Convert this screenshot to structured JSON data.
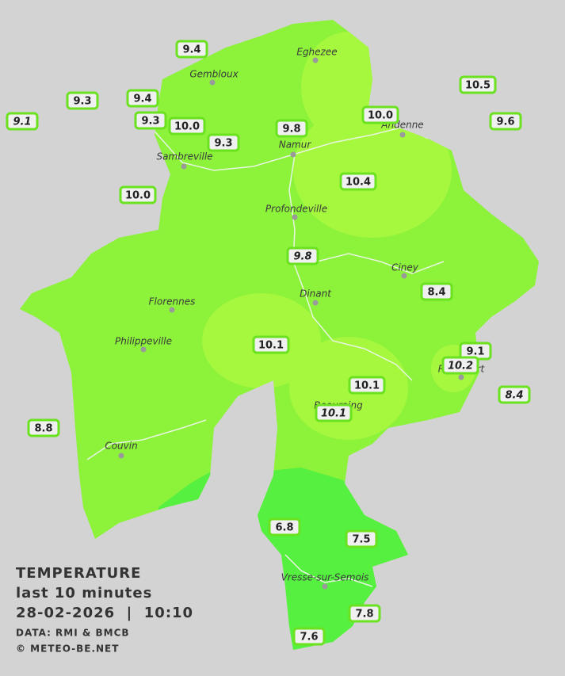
{
  "title": "TEMPERATURE",
  "subtitle": "last 10 minutes",
  "datetime": "28-02-2026  |  10:10",
  "credits": [
    "DATA: RMI & BMCB",
    "© METEO-BE.NET"
  ],
  "cities": [
    "Eghezee",
    "Gembloux",
    "Andenne",
    "Namur",
    "Sambreville",
    "Profondeville",
    "Ciney",
    "Dinant",
    "Florennes",
    "Philippeville",
    "Rochefort",
    "Beauraing",
    "Couvin",
    "Vresse-sur-Semois"
  ],
  "stations": [
    {
      "label": "9.4"
    },
    {
      "label": "9.3"
    },
    {
      "label": "9.1",
      "italic": true
    },
    {
      "label": "9.4"
    },
    {
      "label": "9.3"
    },
    {
      "label": "10.0"
    },
    {
      "label": "9.3"
    },
    {
      "label": "9.8"
    },
    {
      "label": "10.0"
    },
    {
      "label": "10.5"
    },
    {
      "label": "9.6"
    },
    {
      "label": "10.4"
    },
    {
      "label": "10.0"
    },
    {
      "label": "9.8",
      "italic": true
    },
    {
      "label": "8.4"
    },
    {
      "label": "10.1"
    },
    {
      "label": "9.1"
    },
    {
      "label": "10.2",
      "italic": true
    },
    {
      "label": "10.1"
    },
    {
      "label": "8.4",
      "italic": true
    },
    {
      "label": "10.1",
      "italic": true
    },
    {
      "label": "8.8"
    },
    {
      "label": "6.8"
    },
    {
      "label": "7.5"
    },
    {
      "label": "7.8"
    },
    {
      "label": "7.6"
    }
  ]
}
